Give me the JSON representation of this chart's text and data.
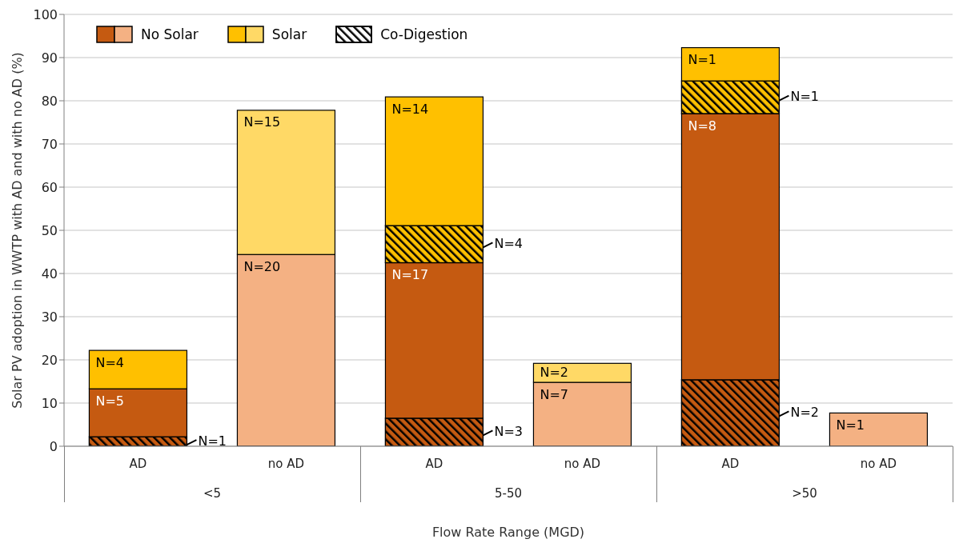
{
  "chart_data": {
    "type": "bar",
    "stacked": true,
    "ylabel": "Solar PV adoption in WWTP with AD and with no AD (%)",
    "xlabel": "Flow Rate Range (MGD)",
    "categories": [
      "AD",
      "no AD",
      "AD",
      "no AD",
      "AD",
      "no AD"
    ],
    "annotations": [
      "<5",
      "5-50",
      ">50",
      "N=1",
      "N=5",
      "N=4",
      "N=20",
      "N=15",
      "N=3",
      "N=17",
      "N=4",
      "N=14",
      "N=7",
      "N=2",
      "N=2",
      "N=8",
      "N=1",
      "N=1",
      "N=1"
    ],
    "ylim": [
      0,
      100
    ],
    "yticks": [
      0,
      10,
      20,
      30,
      40,
      50,
      60,
      70,
      80,
      90,
      100
    ],
    "grid": "y",
    "legend": "top left",
    "series": [
      {
        "name": "Co-Digestion",
        "color": "#000000",
        "colors": [
          "#c55a11",
          null,
          "#c55a11",
          null,
          "#c55a11",
          null
        ],
        "values": [
          2.2,
          null,
          6.5,
          null,
          15.4,
          null
        ]
      },
      {
        "name": "No Solar",
        "colors": [
          "#c55a11",
          "#f4b183",
          "#c55a11",
          "#f4b183",
          "#c55a11",
          "#f4b183"
        ],
        "values": [
          11.1,
          44.4,
          36.0,
          14.8,
          61.6,
          7.7
        ]
      },
      {
        "color": "#000000",
        "colors": [
          null,
          null,
          "#ffc000",
          null,
          "#ffc000",
          null
        ],
        "values": [
          null,
          null,
          8.6,
          null,
          7.6,
          null
        ]
      },
      {
        "name": "Solar",
        "colors": [
          "#ffc000",
          "#ffd966",
          "#ffc000",
          "#ffd966",
          "#ffc000",
          null
        ],
        "values": [
          8.9,
          33.4,
          29.8,
          4.4,
          7.7,
          null
        ]
      }
    ]
  }
}
